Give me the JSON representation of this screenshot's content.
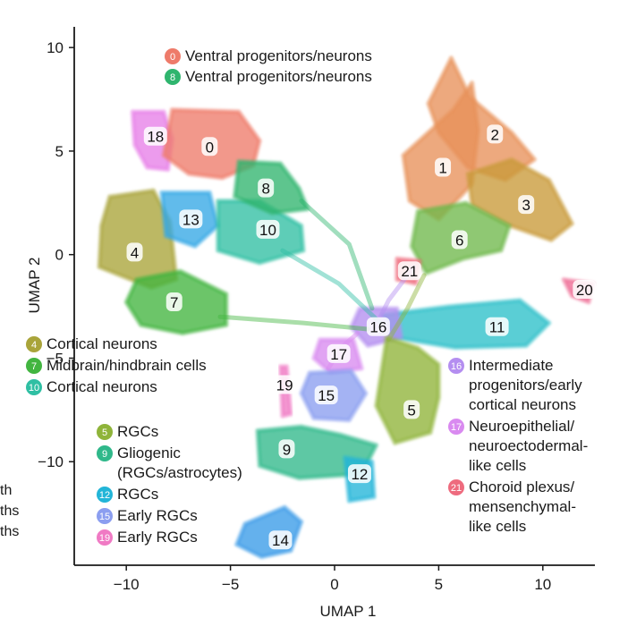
{
  "chart_data": {
    "type": "scatter",
    "xlabel": "UMAP 1",
    "ylabel": "UMAP 2",
    "xlim": [
      -12.5,
      12.5
    ],
    "ylim": [
      -15,
      11
    ],
    "xticks": [
      "−10",
      "−5",
      "0",
      "5",
      "10"
    ],
    "xtick_values": [
      -10,
      -5,
      0,
      5,
      10
    ],
    "yticks": [
      "10",
      "5",
      "0",
      "−5",
      "−10"
    ],
    "ytick_values": [
      10,
      5,
      0,
      -5,
      -10
    ],
    "grid": false,
    "clusters": [
      {
        "id": "0",
        "color": "#ee7b6a",
        "x": -6.0,
        "y": 5.2
      },
      {
        "id": "1",
        "color": "#e8915a",
        "x": 5.2,
        "y": 4.2
      },
      {
        "id": "2",
        "color": "#e8915a",
        "x": 7.7,
        "y": 5.8
      },
      {
        "id": "3",
        "color": "#c99a3a",
        "x": 9.2,
        "y": 2.4
      },
      {
        "id": "4",
        "color": "#a9a43a",
        "x": -9.6,
        "y": 0.1
      },
      {
        "id": "5",
        "color": "#8fb43a",
        "x": 3.7,
        "y": -7.5
      },
      {
        "id": "6",
        "color": "#6fb84a",
        "x": 6.0,
        "y": 0.7
      },
      {
        "id": "7",
        "color": "#42b540",
        "x": -7.7,
        "y": -2.3
      },
      {
        "id": "8",
        "color": "#2fb56e",
        "x": -3.3,
        "y": 3.2
      },
      {
        "id": "9",
        "color": "#2fb88a",
        "x": -2.3,
        "y": -9.4
      },
      {
        "id": "10",
        "color": "#2fbfa3",
        "x": -3.2,
        "y": 1.2
      },
      {
        "id": "11",
        "color": "#2ec0c9",
        "x": 7.8,
        "y": -3.5
      },
      {
        "id": "12",
        "color": "#22b5d8",
        "x": 1.2,
        "y": -10.6
      },
      {
        "id": "13",
        "color": "#35a8e5",
        "x": -6.9,
        "y": 1.7
      },
      {
        "id": "14",
        "color": "#3a9be8",
        "x": -2.6,
        "y": -13.8
      },
      {
        "id": "15",
        "color": "#8b9ef0",
        "x": -0.4,
        "y": -6.8
      },
      {
        "id": "16",
        "color": "#b48ef0",
        "x": 2.1,
        "y": -3.5
      },
      {
        "id": "17",
        "color": "#d98af0",
        "x": 0.2,
        "y": -4.8
      },
      {
        "id": "18",
        "color": "#e77fe8",
        "x": -8.6,
        "y": 5.7
      },
      {
        "id": "19",
        "color": "#f07ac4",
        "x": -2.4,
        "y": -6.3
      },
      {
        "id": "20",
        "color": "#ee6d96",
        "x": 12.0,
        "y": -1.7
      },
      {
        "id": "21",
        "color": "#ee6b7e",
        "x": 3.6,
        "y": -0.8
      }
    ],
    "legend": [
      {
        "group": "top",
        "items": [
          {
            "id": "0",
            "label": "Ventral progenitors/neurons"
          },
          {
            "id": "8",
            "label": "Ventral progenitors/neurons"
          }
        ]
      },
      {
        "group": "left-middle",
        "items": [
          {
            "id": "4",
            "label": "Cortical neurons"
          },
          {
            "id": "7",
            "label": "Midbrain/hindbrain cells"
          },
          {
            "id": "10",
            "label": "Cortical neurons"
          }
        ]
      },
      {
        "group": "left-bottom",
        "items": [
          {
            "id": "5",
            "label": "RGCs"
          },
          {
            "id": "9",
            "label": "Gliogenic",
            "label2": "(RGCs/astrocytes)"
          },
          {
            "id": "12",
            "label": "RGCs"
          },
          {
            "id": "15",
            "label": "Early RGCs"
          },
          {
            "id": "19",
            "label": "Early RGCs"
          }
        ]
      },
      {
        "group": "right",
        "items": [
          {
            "id": "16",
            "label": "Intermediate",
            "label2": "progenitors/early",
            "label3": "cortical neurons"
          },
          {
            "id": "17",
            "label": "Neuroepithelial/",
            "label2": "neuroectodermal-",
            "label3": "like cells"
          },
          {
            "id": "21",
            "label": "Choroid plexus/",
            "label2": "mensenchymal-",
            "label3": "like cells"
          }
        ]
      }
    ],
    "stray_text": [
      "th",
      "ths",
      "ths"
    ]
  }
}
